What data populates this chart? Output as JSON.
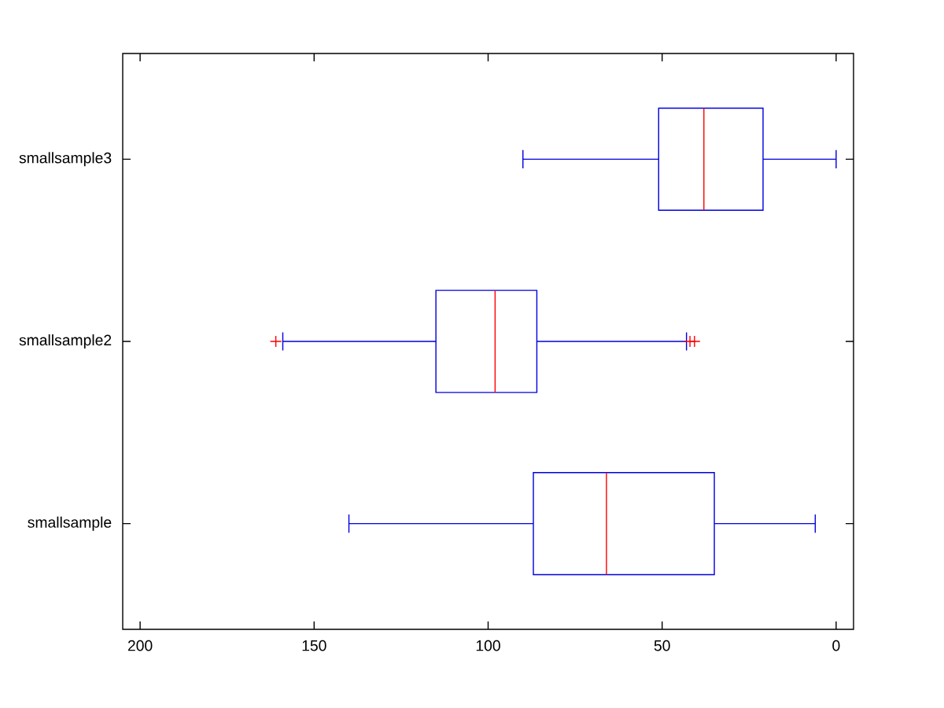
{
  "chart_data": {
    "type": "box",
    "orientation": "horizontal",
    "categories": [
      "smallsample3",
      "smallsample2",
      "smallsample"
    ],
    "color": "#0000e0",
    "marker": "cross",
    "boxes": [
      {
        "low": 0,
        "q1": 21,
        "median": 38,
        "q3": 51,
        "high": 90
      },
      {
        "low": 43,
        "q1": 86,
        "median": 98,
        "q3": 115,
        "high": 159,
        "outliers": [
          40.7,
          42,
          161
        ]
      },
      {
        "low": 6,
        "q1": 35,
        "median": 66,
        "q3": 87,
        "high": 140
      }
    ],
    "xlim": [
      205,
      -5
    ],
    "xticks": [
      200,
      150,
      100,
      50,
      0
    ]
  }
}
